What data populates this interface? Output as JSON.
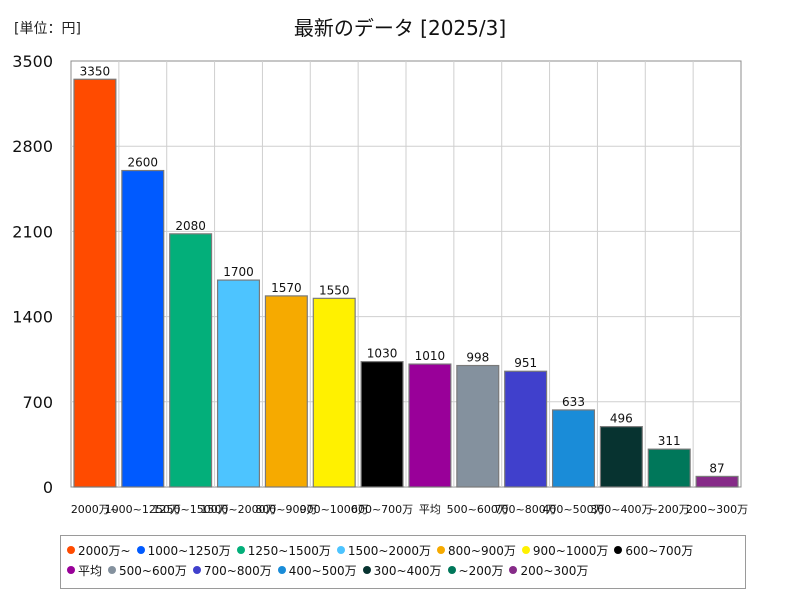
{
  "unit_label": "[単位：円]",
  "chart_data": {
    "type": "bar",
    "title": "最新のデータ [2025/3]",
    "xlabel": "",
    "ylabel": "",
    "ylim": [
      0,
      3500
    ],
    "yticks": [
      0,
      700,
      1400,
      2100,
      2800,
      3500
    ],
    "grid": true,
    "legend_position": "bottom",
    "categories": [
      "2000万~",
      "1000~1250万",
      "1250~1500万",
      "1500~2000万",
      "800~900万",
      "900~1000万",
      "600~700万",
      "平均",
      "500~600万",
      "700~800万",
      "400~500万",
      "300~400万",
      "~200万",
      "200~300万"
    ],
    "values": [
      3350,
      2600,
      2080,
      1700,
      1570,
      1550,
      1030,
      1010,
      998,
      951,
      633,
      496,
      311,
      87
    ],
    "colors": [
      "#ff4b00",
      "#005aff",
      "#03af7a",
      "#4dc4ff",
      "#f6aa00",
      "#fff100",
      "#000000",
      "#990099",
      "#84919e",
      "#4040cc",
      "#1a8cd8",
      "#073330",
      "#00775a",
      "#862b88"
    ]
  }
}
